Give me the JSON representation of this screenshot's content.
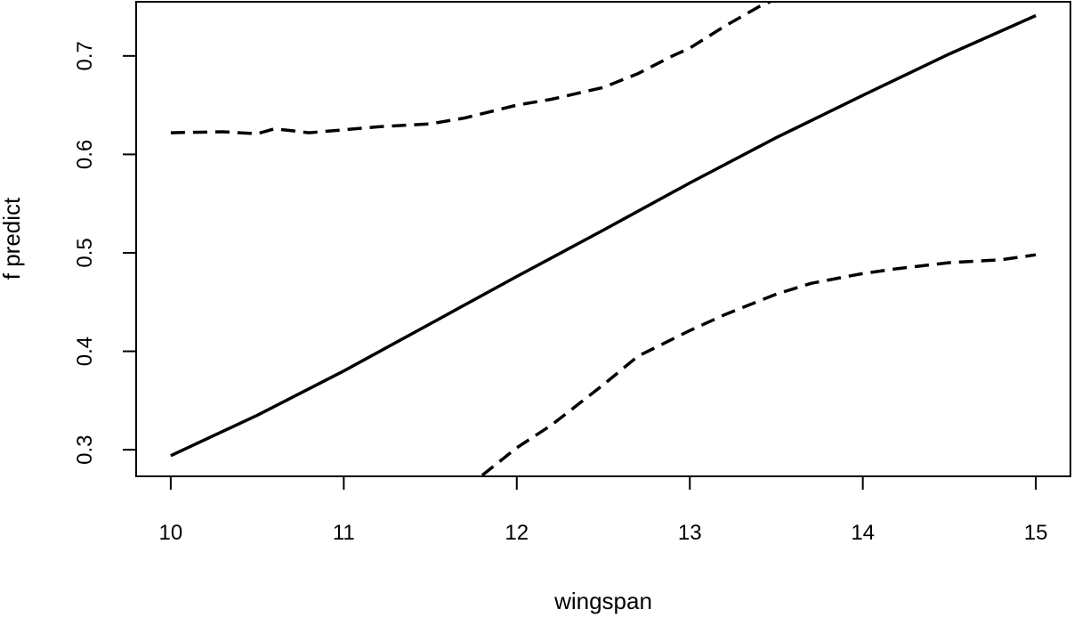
{
  "chart_data": {
    "type": "line",
    "title": "",
    "xlabel": "wingspan",
    "ylabel": "f predict",
    "xlim": [
      9.8,
      15.2
    ],
    "ylim": [
      0.273,
      0.755
    ],
    "xticks": [
      10,
      11,
      12,
      13,
      14,
      15
    ],
    "yticks": [
      0.3,
      0.4,
      0.5,
      0.6,
      0.7
    ],
    "xtick_labels": [
      "10",
      "11",
      "12",
      "13",
      "14",
      "15"
    ],
    "ytick_labels": [
      "0.3",
      "0.4",
      "0.5",
      "0.6",
      "0.7"
    ],
    "grid": false,
    "legend": "none",
    "series": [
      {
        "style": "solid",
        "x": [
          10,
          10.5,
          11,
          11.5,
          12,
          12.5,
          13,
          13.5,
          14,
          14.5,
          15
        ],
        "y": [
          0.294,
          0.335,
          0.38,
          0.428,
          0.476,
          0.523,
          0.571,
          0.617,
          0.66,
          0.702,
          0.741
        ]
      },
      {
        "style": "dashed",
        "x": [
          10,
          10.3,
          10.5,
          10.6,
          10.8,
          11,
          11.2,
          11.5,
          11.7,
          12,
          12.2,
          12.5,
          12.7,
          12.9,
          13,
          13.2,
          13.4,
          13.5
        ],
        "y": [
          0.622,
          0.623,
          0.621,
          0.626,
          0.622,
          0.625,
          0.628,
          0.631,
          0.637,
          0.65,
          0.656,
          0.668,
          0.682,
          0.7,
          0.708,
          0.73,
          0.75,
          0.758
        ]
      },
      {
        "style": "dashed",
        "x": [
          11.8,
          12,
          12.2,
          12.5,
          12.7,
          13,
          13.2,
          13.5,
          13.7,
          14,
          14.2,
          14.5,
          14.8,
          15
        ],
        "y": [
          0.274,
          0.302,
          0.325,
          0.366,
          0.395,
          0.421,
          0.437,
          0.458,
          0.469,
          0.479,
          0.484,
          0.49,
          0.493,
          0.498
        ]
      }
    ]
  }
}
